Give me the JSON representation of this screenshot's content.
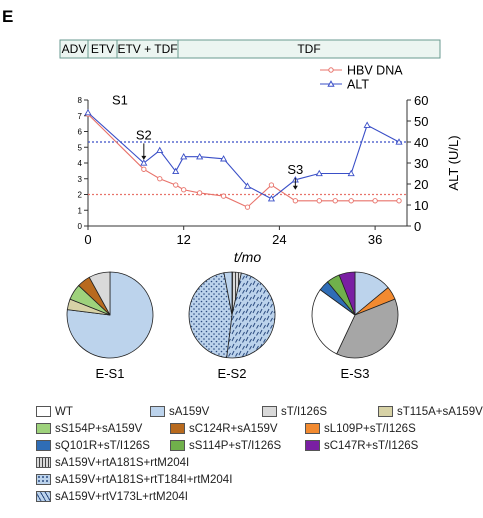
{
  "panel_letter": "E",
  "therapy_bar": [
    "ADV",
    "ETV",
    "ETV + TDF",
    "TDF"
  ],
  "colors": {
    "hbv": "#e8736b",
    "alt": "#3a4fc7",
    "WT": "#ffffff",
    "sA159V": "#bcd3ec",
    "sT_I126S": "#d9d9d9",
    "sT115A": "#d7d2a6",
    "sS154P": "#9ed27c",
    "sC124R": "#b86a1e",
    "sL109P": "#f28a30",
    "sQ101R": "#2f6db6",
    "sS114P": "#70b04b",
    "sC147R": "#7a1fa3",
    "gray_big": "#a6a6a6"
  },
  "chart_data": [
    {
      "type": "line",
      "title": "",
      "xlabel": "t/mo",
      "ylabel_left": "",
      "ylabel_right": "ALT (U/L)",
      "xlim": [
        0,
        40
      ],
      "ylim_left": [
        0,
        8
      ],
      "ylim_right": [
        0,
        60
      ],
      "x_ticks": [
        0,
        12,
        24,
        36
      ],
      "y_left_ticks": [
        0,
        1,
        2,
        3,
        4,
        5,
        6,
        7,
        8
      ],
      "y_right_ticks": [
        0,
        10,
        20,
        30,
        40,
        50,
        60
      ],
      "series": [
        {
          "name": "HBV DNA",
          "axis": "left",
          "marker": "circle",
          "x": [
            0,
            7,
            9,
            11,
            12,
            14,
            17,
            20,
            23,
            26,
            29,
            31,
            33,
            36,
            39
          ],
          "y": [
            7.1,
            3.6,
            3.0,
            2.6,
            2.3,
            2.1,
            1.9,
            1.2,
            2.6,
            1.6,
            1.6,
            1.6,
            1.6,
            1.6,
            1.6
          ]
        },
        {
          "name": "ALT",
          "axis": "right",
          "marker": "triangle",
          "x": [
            0,
            7,
            9,
            11,
            12,
            14,
            17,
            20,
            23,
            26,
            29,
            33,
            35,
            39
          ],
          "y": [
            54,
            30,
            36,
            26,
            33,
            33,
            32,
            19,
            13,
            22,
            25,
            25,
            48,
            40
          ]
        }
      ],
      "reference_lines": [
        {
          "axis": "right",
          "value": 40,
          "color": "alt"
        },
        {
          "axis": "left",
          "value": 2,
          "color": "hbv"
        }
      ],
      "annotations": [
        {
          "text": "S1",
          "x": 4,
          "y": 7.7,
          "arrow": false
        },
        {
          "text": "S2",
          "x": 7,
          "y": 5.5,
          "arrow": true,
          "arrow_to_y": 4.2
        },
        {
          "text": "S3",
          "x": 26,
          "y": 3.3,
          "arrow": true,
          "arrow_to_y": 2.3
        }
      ]
    },
    {
      "type": "pie",
      "title": "E-S1",
      "slices": [
        {
          "label": "sA159V",
          "value": 77.0,
          "color": "sA159V"
        },
        {
          "label": "sT115A+sA159V",
          "value": 4.0,
          "color": "sT115A"
        },
        {
          "label": "sS154P+sA159V",
          "value": 6.0,
          "color": "sS154P"
        },
        {
          "label": "sC124R+sA159V",
          "value": 5.0,
          "color": "sC124R"
        },
        {
          "label": "sT/I126S",
          "value": 8.0,
          "color": "sT_I126S"
        }
      ]
    },
    {
      "type": "pie",
      "title": "E-S2",
      "slices": [
        {
          "label": "sA159V+rtA181S+rtM204I",
          "value": 3.5,
          "color": "sT_I126S",
          "pattern": "vlines"
        },
        {
          "label": "sA159V+rtV173L+rtM204I",
          "value": 48.5,
          "color": "sA159V",
          "pattern": "dashes"
        },
        {
          "label": "sA159V+rtA181S+rtT184I+rtM204I",
          "value": 45.0,
          "color": "sA159V",
          "pattern": "dots"
        },
        {
          "label": "sA159V",
          "value": 3.0,
          "color": "sA159V"
        }
      ]
    },
    {
      "type": "pie",
      "title": "E-S3",
      "slices": [
        {
          "label": "sA159V",
          "value": 14.0,
          "color": "sA159V"
        },
        {
          "label": "sL109P+sT/I126S",
          "value": 5.0,
          "color": "sL109P"
        },
        {
          "label": "",
          "value": 38.0,
          "color": "gray_big"
        },
        {
          "label": "WT",
          "value": 28.0,
          "color": "WT"
        },
        {
          "label": "sQ101R+sT/I126S",
          "value": 4.0,
          "color": "sQ101R"
        },
        {
          "label": "sS114P+sT/I126S",
          "value": 5.0,
          "color": "sS114P"
        },
        {
          "label": "sC147R+sT/I126S",
          "value": 6.0,
          "color": "sC147R"
        }
      ]
    }
  ],
  "legend": [
    {
      "label": "WT",
      "color": "WT",
      "pattern": ""
    },
    {
      "label": "sA159V",
      "color": "sA159V",
      "pattern": ""
    },
    {
      "label": "sT/I126S",
      "color": "sT_I126S",
      "pattern": ""
    },
    {
      "label": "sT115A+sA159V",
      "color": "sT115A",
      "pattern": ""
    },
    {
      "label": "sS154P+sA159V",
      "color": "sS154P",
      "pattern": ""
    },
    {
      "label": "sC124R+sA159V",
      "color": "sC124R",
      "pattern": ""
    },
    {
      "label": "sL109P+sT/I126S",
      "color": "sL109P",
      "pattern": ""
    },
    {
      "label": "sQ101R+sT/I126S",
      "color": "sQ101R",
      "pattern": ""
    },
    {
      "label": "sS114P+sT/I126S",
      "color": "sS114P",
      "pattern": ""
    },
    {
      "label": "sC147R+sT/I126S",
      "color": "sC147R",
      "pattern": ""
    },
    {
      "label": "sA159V+rtA181S+rtM204I",
      "color": "sT_I126S",
      "pattern": "vlines"
    },
    {
      "label": "sA159V+rtA181S+rtT184I+rtM204I",
      "color": "sA159V",
      "pattern": "dots"
    },
    {
      "label": "sA159V+rtV173L+rtM204I",
      "color": "sA159V",
      "pattern": "dashes"
    }
  ]
}
